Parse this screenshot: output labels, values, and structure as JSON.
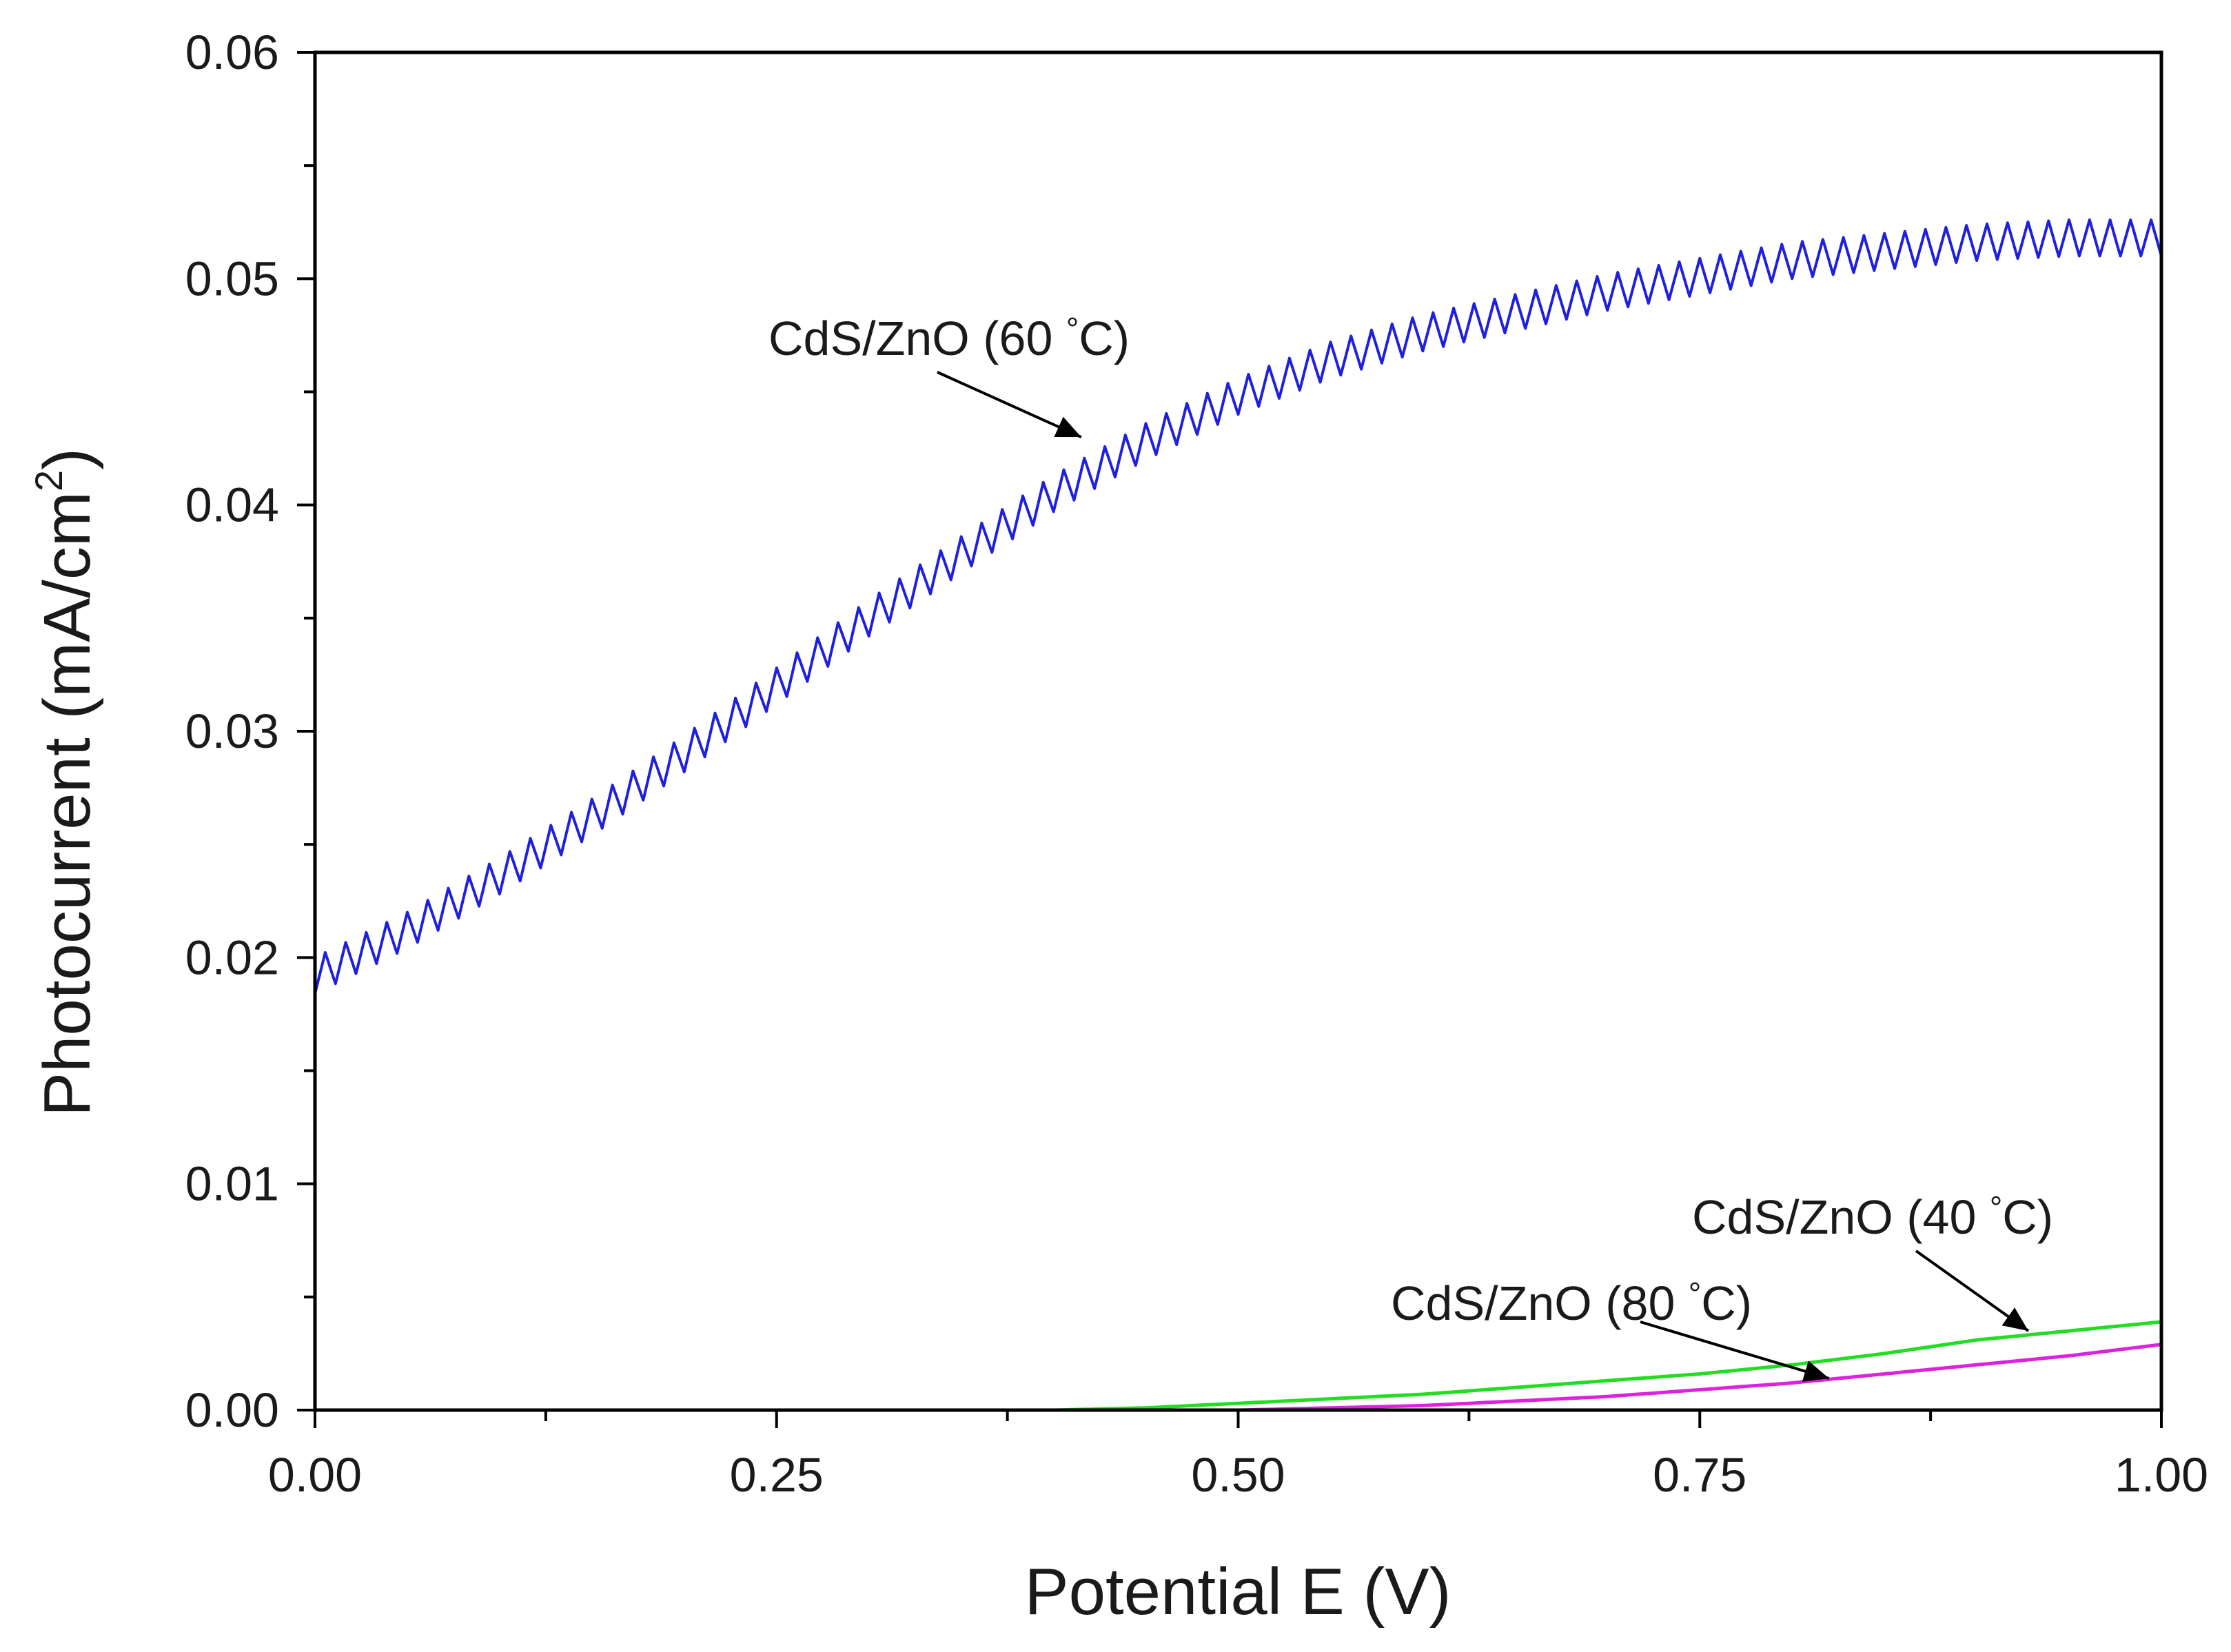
{
  "chart_data": {
    "type": "line",
    "title": "",
    "xlabel": "Potential E (V)",
    "ylabel_main": "Photocurrent (mA/cm",
    "ylabel_sup": "2",
    "ylabel_close": ")",
    "xlim": [
      0,
      1
    ],
    "ylim": [
      0,
      0.06
    ],
    "x_ticks": [
      0,
      0.25,
      0.5,
      0.75,
      1.0
    ],
    "x_tick_labels": [
      "0.00",
      "0.25",
      "0.50",
      "0.75",
      "1.00"
    ],
    "y_ticks": [
      0,
      0.01,
      0.02,
      0.03,
      0.04,
      0.05,
      0.06
    ],
    "y_tick_labels": [
      "0.00",
      "0.01",
      "0.02",
      "0.03",
      "0.04",
      "0.05",
      "0.06"
    ],
    "grid": false,
    "legend": "none",
    "series": [
      {
        "name": "CdS/ZnO (60 °C)",
        "color": "#1f1fe0",
        "x": [
          0.0,
          0.05,
          0.1,
          0.15,
          0.2,
          0.25,
          0.3,
          0.35,
          0.4,
          0.45,
          0.5,
          0.55,
          0.6,
          0.65,
          0.7,
          0.75,
          0.8,
          0.85,
          0.9,
          0.95,
          1.0
        ],
        "y": [
          0.0192,
          0.0212,
          0.0236,
          0.0262,
          0.029,
          0.032,
          0.035,
          0.0378,
          0.0405,
          0.0428,
          0.0448,
          0.0464,
          0.0476,
          0.0485,
          0.0494,
          0.0501,
          0.0508,
          0.0512,
          0.0516,
          0.0518,
          0.0518
        ],
        "oscillation_amplitude": 0.0016
      },
      {
        "name": "CdS/ZnO (40 °C)",
        "color": "#22dd22",
        "x": [
          0.0,
          0.4,
          0.45,
          0.5,
          0.55,
          0.6,
          0.65,
          0.7,
          0.75,
          0.8,
          0.85,
          0.9,
          0.95,
          1.0
        ],
        "y": [
          0.0,
          0.0,
          0.0001,
          0.0003,
          0.0005,
          0.0007,
          0.001,
          0.0013,
          0.0016,
          0.002,
          0.0025,
          0.0031,
          0.0035,
          0.0039
        ]
      },
      {
        "name": "CdS/ZnO (80 °C)",
        "color": "#dd22dd",
        "x": [
          0.0,
          0.5,
          0.55,
          0.6,
          0.65,
          0.7,
          0.75,
          0.8,
          0.85,
          0.9,
          0.95,
          1.0
        ],
        "y": [
          0.0,
          0.0,
          0.0001,
          0.0002,
          0.0004,
          0.0006,
          0.0009,
          0.0012,
          0.0016,
          0.002,
          0.0024,
          0.0029
        ]
      }
    ],
    "annotations": [
      {
        "series": 0,
        "prefix": "CdS/ZnO  (60 ",
        "suffix": "C)",
        "degree": "°",
        "arrow_to": [
          0.415,
          0.043
        ]
      },
      {
        "series": 1,
        "prefix": "CdS/ZnO  (40 ",
        "suffix": "C)",
        "degree": "°",
        "arrow_to": [
          0.928,
          0.0035
        ]
      },
      {
        "series": 2,
        "prefix": "CdS/ZnO  (80 ",
        "suffix": "C)",
        "degree": "°",
        "arrow_to": [
          0.82,
          0.0014
        ]
      }
    ]
  }
}
